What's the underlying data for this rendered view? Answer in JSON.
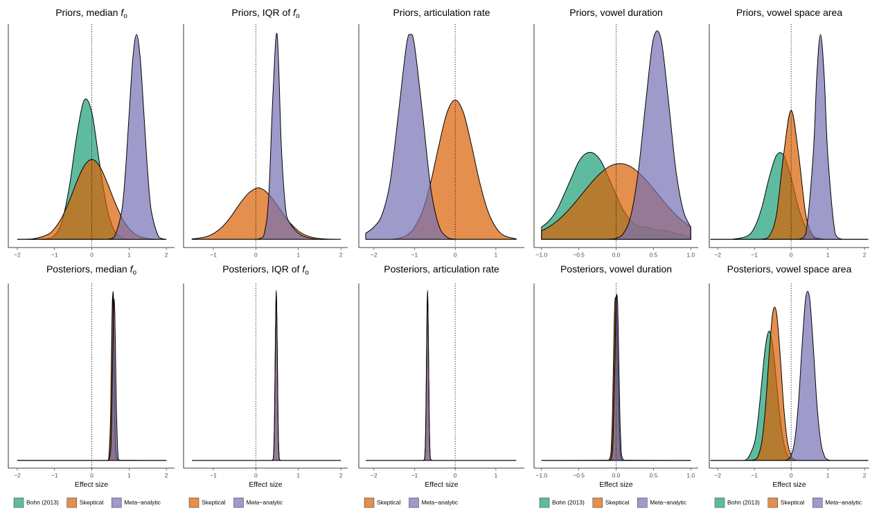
{
  "chart_data": [
    {
      "type": "area",
      "title": "Priors, median ",
      "title_italic": "f",
      "title_subscript": "o",
      "xlim": [
        -2.24,
        2.22
      ],
      "ylim": [
        -0.04,
        1.05
      ],
      "reference_x": 0,
      "opacity": 0.7,
      "xticks": [
        {
          "value": -2,
          "label": "−2"
        },
        {
          "value": -1,
          "label": "−1"
        },
        0,
        1,
        2
      ],
      "x": [
        -2,
        -1.6,
        -1.2,
        -1,
        -0.8,
        -0.6,
        -0.4,
        -0.2,
        0,
        0.2,
        0.4,
        0.6,
        0.8,
        0.9,
        1,
        1.1,
        1.2,
        1.3,
        1.4,
        1.5,
        1.6,
        1.8,
        2
      ],
      "series": [
        {
          "color": "#1b9e77",
          "values": [
            0,
            0,
            0.003,
            0.02,
            0.088,
            0.26,
            0.51,
            0.68,
            0.62,
            0.38,
            0.16,
            0.044,
            0.008,
            0.003,
            0.001,
            0,
            0,
            0,
            0,
            0,
            0,
            0,
            0
          ]
        },
        {
          "color": "#d95f02",
          "values": [
            0,
            0.002,
            0.022,
            0.053,
            0.108,
            0.19,
            0.283,
            0.36,
            0.39,
            0.36,
            0.283,
            0.19,
            0.108,
            0.077,
            0.053,
            0.035,
            0.022,
            0.013,
            0.008,
            0.004,
            0.002,
            0,
            0
          ]
        },
        {
          "color": "#7570b3",
          "values": [
            0,
            0,
            0,
            0,
            0,
            0,
            0,
            0,
            0,
            0,
            0,
            0.011,
            0.135,
            0.325,
            0.607,
            0.882,
            1,
            0.882,
            0.607,
            0.325,
            0.135,
            0.011,
            0
          ]
        }
      ]
    },
    {
      "type": "area",
      "title": "Priors, IQR of ",
      "title_italic": "f",
      "title_subscript": "o",
      "xlim": [
        -1.7,
        2.16
      ],
      "ylim": [
        -0.04,
        1.05
      ],
      "reference_x": 0,
      "opacity": 0.7,
      "xticks": [
        {
          "value": -1,
          "label": "−1"
        },
        0,
        1,
        2
      ],
      "x": [
        -1.5,
        -1.2,
        -1,
        -0.8,
        -0.6,
        -0.4,
        -0.2,
        0,
        0.1,
        0.2,
        0.3,
        0.4,
        0.5,
        0.6,
        0.7,
        0.8,
        1,
        1.2,
        1.5,
        2
      ],
      "series": [
        {
          "color": "#d95f02",
          "values": [
            0.002,
            0.011,
            0.028,
            0.059,
            0.107,
            0.167,
            0.22,
            0.249,
            0.25,
            0.239,
            0.22,
            0.196,
            0.167,
            0.137,
            0.107,
            0.081,
            0.041,
            0.018,
            0.004,
            0
          ]
        },
        {
          "color": "#7570b3",
          "values": [
            0,
            0,
            0,
            0,
            0,
            0,
            0,
            0,
            0.005,
            0.03,
            0.2,
            0.7,
            1,
            0.45,
            0.15,
            0.08,
            0.03,
            0.01,
            0,
            0
          ]
        }
      ]
    },
    {
      "type": "area",
      "title": "Priors, articulation rate",
      "xlim": [
        -2.37,
        1.7
      ],
      "ylim": [
        -0.04,
        1.05
      ],
      "reference_x": 0,
      "opacity": 0.7,
      "xticks": [
        {
          "value": -2,
          "label": "−2"
        },
        {
          "value": -1,
          "label": "−1"
        },
        0,
        1
      ],
      "x": [
        -2.2,
        -2,
        -1.8,
        -1.6,
        -1.4,
        -1.2,
        -1.1,
        -1,
        -0.8,
        -0.6,
        -0.4,
        -0.2,
        0,
        0.2,
        0.4,
        0.6,
        0.8,
        1,
        1.2,
        1.5
      ],
      "series": [
        {
          "color": "#d95f02",
          "values": [
            0,
            0,
            0,
            0,
            0.005,
            0.019,
            0.035,
            0.058,
            0.14,
            0.28,
            0.46,
            0.62,
            0.68,
            0.62,
            0.46,
            0.28,
            0.14,
            0.058,
            0.019,
            0.002
          ]
        },
        {
          "color": "#7570b3",
          "values": [
            0.03,
            0.06,
            0.12,
            0.28,
            0.607,
            0.946,
            1,
            0.946,
            0.607,
            0.249,
            0.066,
            0.011,
            0.001,
            0,
            0,
            0,
            0,
            0,
            0,
            0
          ]
        }
      ]
    },
    {
      "type": "area",
      "title": "Priors, vowel duration",
      "xlim": [
        -1.1,
        1.1
      ],
      "ylim": [
        -0.04,
        1.05
      ],
      "reference_x": 0,
      "opacity": 0.7,
      "xticks": [
        {
          "value": -1,
          "label": "−1.0"
        },
        {
          "value": -0.5,
          "label": "−0.5"
        },
        {
          "value": 0,
          "label": "0.0"
        },
        0.5,
        {
          "value": 1,
          "label": "1.0"
        }
      ],
      "x": [
        -1,
        -0.9,
        -0.8,
        -0.7,
        -0.6,
        -0.5,
        -0.4,
        -0.3,
        -0.2,
        -0.1,
        0,
        0.1,
        0.2,
        0.3,
        0.4,
        0.5,
        0.6,
        0.7,
        0.8,
        0.9,
        1
      ],
      "series": [
        {
          "color": "#1b9e77",
          "values": [
            0.06,
            0.09,
            0.14,
            0.217,
            0.3,
            0.38,
            0.42,
            0.42,
            0.38,
            0.3,
            0.217,
            0.14,
            0.09,
            0.065,
            0.06,
            0.05,
            0.045,
            0.04,
            0.03,
            0.02,
            0.01
          ]
        },
        {
          "color": "#d95f02",
          "values": [
            0.041,
            0.061,
            0.087,
            0.12,
            0.159,
            0.202,
            0.247,
            0.29,
            0.326,
            0.354,
            0.368,
            0.368,
            0.354,
            0.326,
            0.29,
            0.247,
            0.202,
            0.159,
            0.12,
            0.087,
            0.061
          ]
        },
        {
          "color": "#7570b3",
          "values": [
            0,
            0,
            0,
            0,
            0,
            0,
            0,
            0,
            0,
            0.001,
            0.005,
            0.03,
            0.12,
            0.34,
            0.68,
            0.98,
            0.98,
            0.68,
            0.34,
            0.14,
            0.06
          ]
        }
      ]
    },
    {
      "type": "area",
      "title": "Priors, vowel space area",
      "xlim": [
        -2.23,
        2.13
      ],
      "ylim": [
        -0.04,
        1.05
      ],
      "reference_x": 0,
      "opacity": 0.7,
      "xticks": [
        {
          "value": -2,
          "label": "−2"
        },
        {
          "value": -1,
          "label": "−1"
        },
        0,
        1,
        2
      ],
      "x": [
        -2.2,
        -2,
        -1.6,
        -1.2,
        -1,
        -0.8,
        -0.6,
        -0.4,
        -0.2,
        0,
        0.2,
        0.4,
        0.6,
        0.7,
        0.8,
        0.9,
        1,
        1.2,
        1.4,
        1.6,
        2,
        2.1
      ],
      "series": [
        {
          "color": "#1b9e77",
          "values": [
            0,
            0,
            0.001,
            0.016,
            0.058,
            0.155,
            0.3,
            0.41,
            0.41,
            0.3,
            0.155,
            0.058,
            0.016,
            0.007,
            0.003,
            0.001,
            0,
            0,
            0,
            0,
            0,
            0
          ]
        },
        {
          "color": "#d95f02",
          "values": [
            0,
            0,
            0,
            0,
            0,
            0.001,
            0.015,
            0.12,
            0.42,
            0.63,
            0.42,
            0.12,
            0.015,
            0.004,
            0.001,
            0,
            0,
            0,
            0,
            0,
            0,
            0
          ]
        },
        {
          "color": "#7570b3",
          "values": [
            0,
            0,
            0,
            0,
            0,
            0,
            0,
            0,
            0,
            0,
            0,
            0.028,
            0.41,
            0.8,
            1,
            0.8,
            0.41,
            0.028,
            0,
            0,
            0,
            0
          ]
        }
      ]
    },
    {
      "type": "area",
      "title": "Posteriors, median ",
      "title_italic": "f",
      "title_subscript": "o",
      "xlabel": "Effect size",
      "legend": true,
      "xlim": [
        -2.24,
        2.22
      ],
      "ylim": [
        -0.045,
        1.04
      ],
      "reference_x": 0,
      "opacity": 0.7,
      "xticks": [
        {
          "value": -2,
          "label": "−2"
        },
        {
          "value": -1,
          "label": "−1"
        },
        0,
        1,
        2
      ],
      "x": [
        -2,
        0.4,
        0.45,
        0.5,
        0.52,
        0.54,
        0.56,
        0.58,
        0.6,
        0.62,
        0.64,
        0.66,
        0.7,
        0.75,
        2
      ],
      "series": [
        {
          "name": "Bohn (2013)",
          "color": "#1b9e77",
          "values": [
            0,
            0,
            0.003,
            0.135,
            0.36,
            0.69,
            0.96,
            0.96,
            0.69,
            0.36,
            0.135,
            0.037,
            0.001,
            0,
            0
          ]
        },
        {
          "name": "Skeptical",
          "color": "#d95f02",
          "values": [
            0,
            0,
            0.007,
            0.22,
            0.51,
            0.82,
            0.97,
            0.82,
            0.51,
            0.22,
            0.07,
            0.017,
            0,
            0,
            0
          ]
        },
        {
          "name": "Meta−analytic",
          "color": "#7570b3",
          "values": [
            0,
            0,
            0.001,
            0.042,
            0.128,
            0.31,
            0.58,
            0.84,
            0.95,
            0.84,
            0.58,
            0.31,
            0.042,
            0.001,
            0
          ]
        }
      ]
    },
    {
      "type": "area",
      "title": "Posteriors, IQR of ",
      "title_italic": "f",
      "title_subscript": "o",
      "xlabel": "Effect size",
      "legend": true,
      "xlim": [
        -1.7,
        2.16
      ],
      "ylim": [
        -0.045,
        1.04
      ],
      "reference_x": 0,
      "opacity": 0.7,
      "xticks": [
        {
          "value": -1,
          "label": "−1"
        },
        0,
        1,
        2
      ],
      "x": [
        -1.5,
        0.38,
        0.42,
        0.44,
        0.46,
        0.48,
        0.5,
        0.52,
        0.54,
        0.58,
        2
      ],
      "series": [
        {
          "name": "Skeptical",
          "color": "#d95f02",
          "values": [
            0,
            0,
            0.056,
            0.278,
            0.726,
            1,
            0.726,
            0.278,
            0.056,
            0,
            0
          ]
        },
        {
          "name": "Meta−analytic",
          "color": "#7570b3",
          "values": [
            0,
            0,
            0.055,
            0.272,
            0.71,
            0.98,
            0.71,
            0.272,
            0.055,
            0,
            0
          ]
        }
      ]
    },
    {
      "type": "area",
      "title": "Posteriors, articulation rate",
      "xlabel": "Effect size",
      "legend": true,
      "xlim": [
        -2.37,
        1.7
      ],
      "ylim": [
        -0.045,
        1.04
      ],
      "reference_x": 0,
      "opacity": 0.7,
      "xticks": [
        {
          "value": -2,
          "label": "−2"
        },
        {
          "value": -1,
          "label": "−1"
        },
        0,
        1
      ],
      "x": [
        -2.2,
        -0.78,
        -0.74,
        -0.72,
        -0.7,
        -0.68,
        -0.66,
        -0.64,
        -0.62,
        -0.58,
        1.5
      ],
      "series": [
        {
          "name": "Skeptical",
          "color": "#d95f02",
          "values": [
            0,
            0,
            0.056,
            0.278,
            0.726,
            1,
            0.726,
            0.278,
            0.056,
            0,
            0
          ]
        },
        {
          "name": "Meta−analytic",
          "color": "#7570b3",
          "values": [
            0,
            0,
            0.055,
            0.272,
            0.71,
            0.98,
            0.71,
            0.272,
            0.055,
            0,
            0
          ]
        }
      ]
    },
    {
      "type": "area",
      "title": "Posteriors, vowel duration",
      "xlabel": "Effect size",
      "legend": true,
      "xlim": [
        -1.1,
        1.1
      ],
      "ylim": [
        -0.045,
        1.04
      ],
      "reference_x": 0,
      "opacity": 0.7,
      "xticks": [
        {
          "value": -1,
          "label": "−1.0"
        },
        {
          "value": -0.5,
          "label": "−0.5"
        },
        {
          "value": 0,
          "label": "0.0"
        },
        0.5,
        {
          "value": 1,
          "label": "1.0"
        }
      ],
      "x": [
        -1,
        -0.1,
        -0.06,
        -0.04,
        -0.02,
        0,
        0.02,
        0.04,
        0.06,
        0.1,
        1
      ],
      "series": [
        {
          "name": "Bohn (2013)",
          "color": "#1b9e77",
          "values": [
            0,
            0,
            0.054,
            0.27,
            0.7,
            0.97,
            0.7,
            0.27,
            0.054,
            0,
            0
          ]
        },
        {
          "name": "Skeptical",
          "color": "#d95f02",
          "values": [
            0,
            0.002,
            0.132,
            0.477,
            0.905,
            0.905,
            0.477,
            0.132,
            0.019,
            0,
            0
          ]
        },
        {
          "name": "Meta−analytic",
          "color": "#7570b3",
          "values": [
            0,
            0,
            0.02,
            0.135,
            0.487,
            0.923,
            0.923,
            0.487,
            0.135,
            0.002,
            0
          ]
        }
      ]
    },
    {
      "type": "area",
      "title": "Posteriors, vowel space area",
      "xlabel": "Effect size",
      "legend": true,
      "xlim": [
        -2.23,
        2.13
      ],
      "ylim": [
        -0.045,
        1.04
      ],
      "reference_x": 0,
      "opacity": 0.7,
      "xticks": [
        {
          "value": -2,
          "label": "−2"
        },
        {
          "value": -1,
          "label": "−1"
        },
        0,
        1,
        2
      ],
      "x": [
        -2.2,
        -1.4,
        -1.2,
        -1,
        -0.9,
        -0.8,
        -0.7,
        -0.6,
        -0.5,
        -0.4,
        -0.3,
        -0.2,
        -0.1,
        0,
        0.1,
        0.2,
        0.3,
        0.4,
        0.5,
        0.6,
        0.7,
        0.8,
        0.9,
        1,
        1.2,
        2.1
      ],
      "series": [
        {
          "name": "Bohn (2013)",
          "color": "#1b9e77",
          "values": [
            0,
            0,
            0.008,
            0.103,
            0.247,
            0.461,
            0.67,
            0.76,
            0.67,
            0.461,
            0.247,
            0.103,
            0.033,
            0.008,
            0.001,
            0,
            0,
            0,
            0,
            0,
            0,
            0,
            0,
            0,
            0,
            0
          ]
        },
        {
          "name": "Skeptical",
          "color": "#d95f02",
          "values": [
            0,
            0,
            0,
            0.005,
            0.027,
            0.109,
            0.31,
            0.62,
            0.87,
            0.87,
            0.62,
            0.31,
            0.109,
            0.027,
            0.005,
            0,
            0,
            0,
            0,
            0,
            0,
            0,
            0,
            0,
            0,
            0
          ]
        },
        {
          "name": "Meta−analytic",
          "color": "#7570b3",
          "values": [
            0,
            0,
            0,
            0,
            0,
            0,
            0,
            0,
            0,
            0,
            0,
            0.001,
            0.005,
            0.03,
            0.12,
            0.34,
            0.68,
            0.96,
            0.96,
            0.68,
            0.34,
            0.12,
            0.03,
            0.005,
            0,
            0
          ]
        }
      ]
    }
  ]
}
